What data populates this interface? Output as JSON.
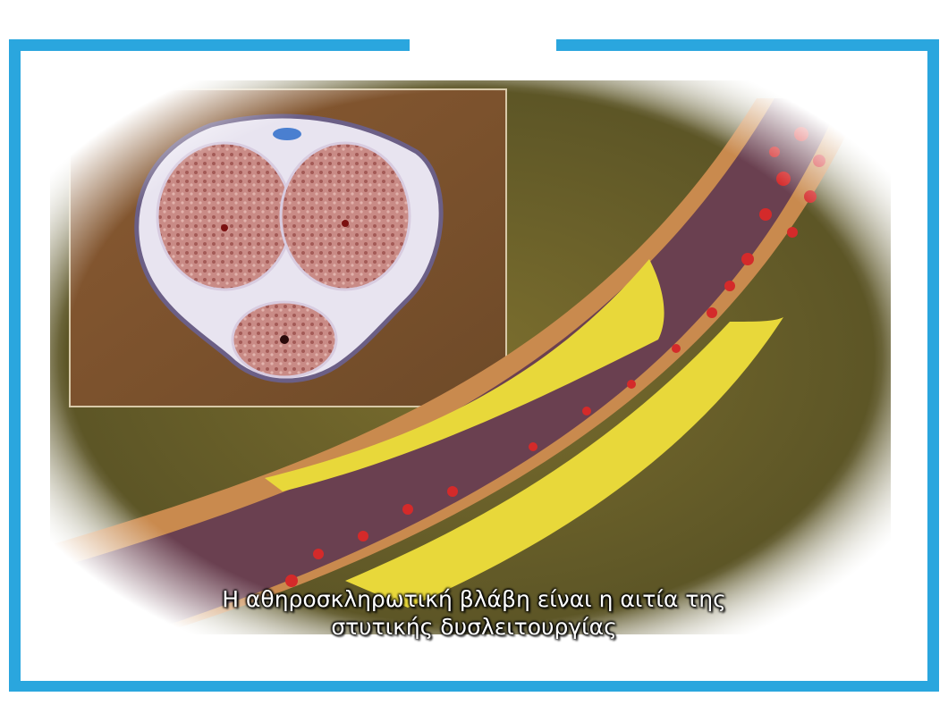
{
  "frame": {
    "color": "#2aa6de"
  },
  "illustration": {
    "subject": "artery-with-plaque",
    "inset": "cross-section"
  },
  "caption": {
    "line1": "Η αθηροσκληρωτική βλάβη είναι η αιτία της",
    "line2": "στυτικής δυσλειτουργίας"
  }
}
